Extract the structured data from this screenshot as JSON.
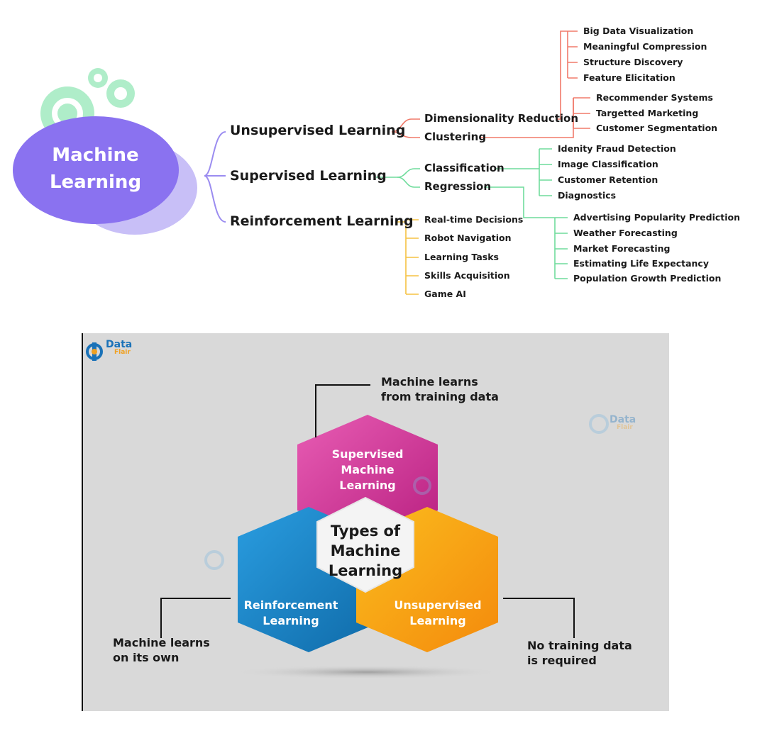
{
  "mindmap": {
    "root": {
      "line1": "Machine",
      "line2": "Learning"
    },
    "branches": [
      {
        "label": "Unsupervised Learning",
        "color": "#f07a6a",
        "children": [
          {
            "label": "Dimensionality Reduction",
            "leaves": [
              "Big Data Visualization",
              "Meaningful Compression",
              "Structure Discovery",
              "Feature Elicitation"
            ]
          },
          {
            "label": "Clustering",
            "leaves": [
              "Recommender Systems",
              "Targetted Marketing",
              "Customer Segmentation"
            ]
          }
        ]
      },
      {
        "label": "Supervised Learning",
        "color": "#6fdc9c",
        "children": [
          {
            "label": "Classification",
            "leaves": [
              "Idenity Fraud Detection",
              "Image Classification",
              "Customer Retention",
              "Diagnostics"
            ]
          },
          {
            "label": "Regression",
            "leaves": [
              "Advertising Popularity Prediction",
              "Weather Forecasting",
              "Market Forecasting",
              "Estimating Life Expectancy",
              "Population Growth Prediction"
            ]
          }
        ]
      },
      {
        "label": "Reinforcement Learning",
        "color": "#f5c242",
        "leaves": [
          "Real-time Decisions",
          "Robot Navigation",
          "Learning Tasks",
          "Skills Acquisition",
          "Game AI"
        ]
      }
    ],
    "root_color": "#7b68ee",
    "connector_color": "#9b8cf0"
  },
  "hexagons": {
    "logo": {
      "line1": "Data",
      "line2": "Flair"
    },
    "watermark": {
      "line1": "Data",
      "line2": "Flair"
    },
    "center": {
      "line1": "Types of",
      "line2": "Machine",
      "line3": "Learning"
    },
    "supervised": {
      "line1": "Supervised",
      "line2": "Machine",
      "line3": "Learning",
      "color": "#d6359a"
    },
    "reinforcement": {
      "line1": "Reinforcement",
      "line2": "Learning",
      "color": "#1f8ad0"
    },
    "unsupervised": {
      "line1": "Unsupervised",
      "line2": "Learning",
      "color": "#f7a21b"
    },
    "notes": {
      "top": {
        "line1": "Machine learns",
        "line2": "from training data"
      },
      "left": {
        "line1": "Machine learns",
        "line2": "on its own"
      },
      "right": {
        "line1": "No training data",
        "line2": "is required"
      }
    }
  }
}
